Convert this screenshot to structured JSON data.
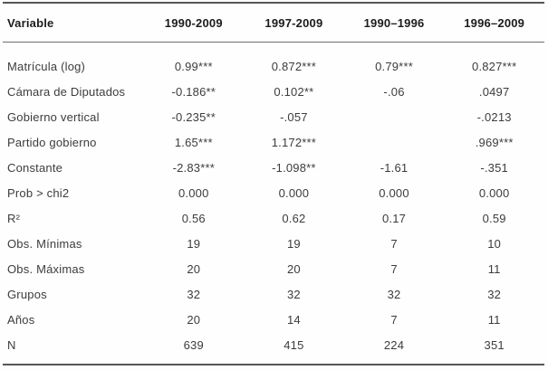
{
  "table": {
    "columns": [
      "Variable",
      "1990-2009",
      "1997-2009",
      "1990–1996",
      "1996–2009"
    ],
    "rows": [
      {
        "label": "Matrícula (log)",
        "values": [
          "0.99***",
          "0.872***",
          "0.79***",
          "0.827***"
        ]
      },
      {
        "label": "Cámara de Diputados",
        "values": [
          "-0.186**",
          "0.102**",
          "-.06",
          ".0497"
        ]
      },
      {
        "label": "Gobierno vertical",
        "values": [
          "-0.235**",
          "-.057",
          "",
          "-.0213"
        ]
      },
      {
        "label": "Partido gobierno",
        "values": [
          "1.65***",
          "1.172***",
          "",
          ".969***"
        ]
      },
      {
        "label": "Constante",
        "values": [
          "-2.83***",
          "-1.098**",
          "-1.61",
          "-.351"
        ]
      },
      {
        "label": "Prob > chi2",
        "values": [
          "0.000",
          "0.000",
          "0.000",
          "0.000"
        ]
      },
      {
        "label": "R²",
        "values": [
          "0.56",
          "0.62",
          "0.17",
          "0.59"
        ]
      },
      {
        "label": "Obs. Mínimas",
        "values": [
          "19",
          "19",
          "7",
          "10"
        ]
      },
      {
        "label": "Obs. Máximas",
        "values": [
          "20",
          "20",
          "7",
          "11"
        ]
      },
      {
        "label": "Grupos",
        "values": [
          "32",
          "32",
          "32",
          "32"
        ]
      },
      {
        "label": "Años",
        "values": [
          "20",
          "14",
          "7",
          "11"
        ]
      },
      {
        "label": "N",
        "values": [
          "639",
          "415",
          "224",
          "351"
        ]
      }
    ]
  },
  "colors": {
    "rule": "#565656",
    "header_rule": "#6e6e6e",
    "header_text": "#1c1c1c",
    "body_text": "#3c3c3c",
    "background": "#fefefe"
  }
}
